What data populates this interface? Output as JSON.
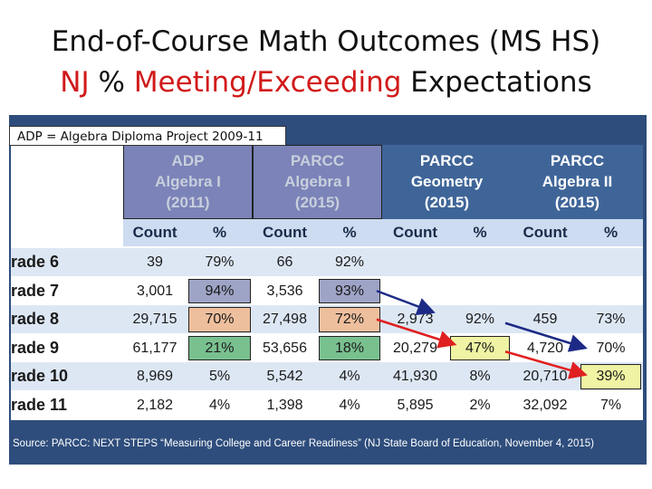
{
  "title_line1": "End-of-Course Math Outcomes (MS HS)",
  "title_line2_part1": "NJ",
  "title_line2_part2": "%",
  "title_line2_part3": "Meeting/Exceeding",
  "title_line2_part4": "Expectations",
  "note": "ADP = Algebra Diploma Project 2009-11",
  "source": "Source:  PARCC: NEXT STEPS “Measuring College and Career Readiness” (NJ State Board of Education, November 4, 2015)",
  "colors": {
    "title_red": "#d11a1a",
    "header_blue": "#3f6598",
    "dim_header": "#7b83b8",
    "gray_box": "#9ea4c6",
    "orange_box": "#eebf9d",
    "green_box": "#79c08f",
    "yellow_box": "#eff3a3",
    "arrow_red": "#e02020",
    "arrow_navy": "#1c2a86"
  },
  "chart_data": {
    "type": "table",
    "groups": [
      {
        "line1": "ADP",
        "line2": "Algebra I",
        "line3": "(2011)"
      },
      {
        "line1": "PARCC",
        "line2": "Algebra I",
        "line3": "(2015)"
      },
      {
        "line1": "PARCC",
        "line2": "Geometry",
        "line3": "(2015)"
      },
      {
        "line1": "PARCC",
        "line2": "Algebra II",
        "line3": "(2015)"
      }
    ],
    "subheaders": [
      "Count",
      "%",
      "Count",
      "%",
      "Count",
      "%",
      "Count",
      "%"
    ],
    "rows": [
      {
        "label": "rade 6",
        "cells": [
          "39",
          "79%",
          "66",
          "92%",
          "",
          "",
          "",
          ""
        ]
      },
      {
        "label": "rade 7",
        "cells": [
          "3,001",
          "94%",
          "3,536",
          "93%",
          "",
          "",
          "",
          ""
        ]
      },
      {
        "label": "rade 8",
        "cells": [
          "29,715",
          "70%",
          "27,498",
          "72%",
          "2,973",
          "92%",
          "459",
          "73%"
        ]
      },
      {
        "label": "rade 9",
        "cells": [
          "61,177",
          "21%",
          "53,656",
          "18%",
          "20,279",
          "47%",
          "4,720",
          "70%"
        ]
      },
      {
        "label": "rade 10",
        "cells": [
          "8,969",
          "5%",
          "5,542",
          "4%",
          "41,930",
          "8%",
          "20,710",
          "39%"
        ]
      },
      {
        "label": "rade 11",
        "cells": [
          "2,182",
          "4%",
          "1,398",
          "4%",
          "5,895",
          "2%",
          "32,092",
          "7%"
        ]
      }
    ]
  }
}
